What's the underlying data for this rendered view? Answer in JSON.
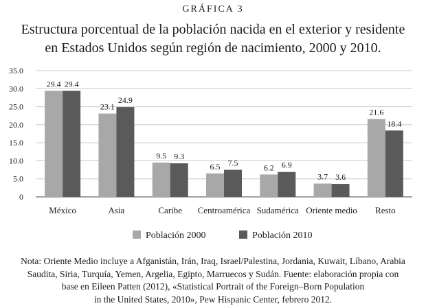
{
  "figure_label": "GRÁFICA 3",
  "title_lines": [
    "Estructura porcentual de la población nacida en el exterior y residente",
    "en Estados Unidos según región de nacimiento, 2000 y 2010."
  ],
  "note_lines": [
    "Nota: Oriente Medio incluye a Afganistán, Irán, Iraq, Israel/Palestina, Jordania, Kuwait, Líbano, Arabia",
    "Saudita, Siria, Turquía, Yemen, Argelia, Egipto, Marruecos y Sudán. Fuente: elaboración propia con",
    "base en Eileen Patten (2012), «Statistical Portrait of the Foreign–Born Population",
    "in the United States, 2010», Pew Hispanic Center, febrero 2012."
  ],
  "chart_data": {
    "type": "bar",
    "title": "Estructura porcentual de la población nacida en el exterior y residente en Estados Unidos según región de nacimiento, 2000 y 2010.",
    "categories": [
      "México",
      "Asia",
      "Caribe",
      "Centroamérica",
      "Sudamérica",
      "Oriente medio",
      "Resto"
    ],
    "series": [
      {
        "name": "Población 2000",
        "values": [
          29.4,
          23.1,
          9.5,
          6.5,
          6.2,
          3.7,
          21.6
        ],
        "color": "#a8a8a8"
      },
      {
        "name": "Población 2010",
        "values": [
          29.4,
          24.9,
          9.3,
          7.5,
          6.9,
          3.6,
          18.4
        ],
        "color": "#5a5a5a"
      }
    ],
    "data_labels": [
      [
        "29.4",
        "23.1",
        "9.5",
        "6.5",
        "6.2",
        "3.7",
        "21.6"
      ],
      [
        "29.4",
        "24.9",
        "9.3",
        "7.5",
        "6.9",
        "3.6",
        "18.4"
      ]
    ],
    "yticks": [
      "35.0",
      "30.0",
      "25.0",
      "20.0",
      "15.0",
      "10.0",
      "5.0",
      "0"
    ],
    "ylim": [
      0,
      35
    ],
    "xlabel": "",
    "ylabel": "",
    "grid": true,
    "legend_position": "bottom"
  }
}
